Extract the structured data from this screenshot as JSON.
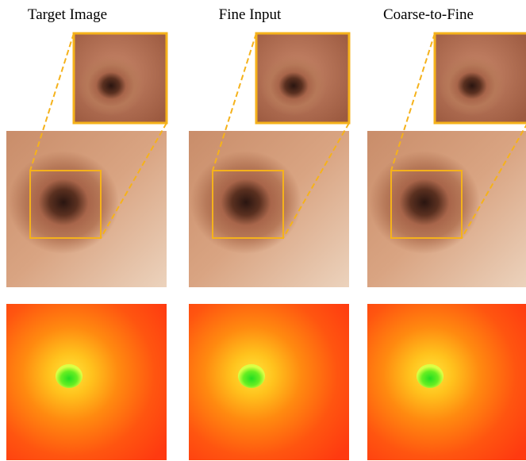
{
  "panels": [
    {
      "title": "Target Image"
    },
    {
      "title": "Fine Input"
    },
    {
      "title": "Coarse-to-Fine"
    }
  ]
}
